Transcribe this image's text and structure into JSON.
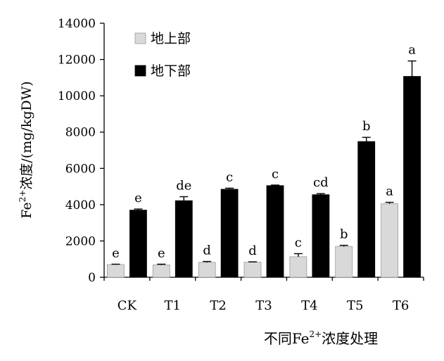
{
  "chart_data": {
    "type": "bar",
    "categories": [
      "CK",
      "T1",
      "T2",
      "T3",
      "T4",
      "T5",
      "T6"
    ],
    "series": [
      {
        "name": "地上部",
        "color": "#d9d9d9",
        "values": [
          700,
          680,
          820,
          830,
          1130,
          1700,
          4050
        ],
        "errors": [
          20,
          40,
          50,
          20,
          170,
          60,
          80
        ],
        "letters": [
          "e",
          "e",
          "d",
          "d",
          "c",
          "b",
          "a"
        ]
      },
      {
        "name": "地下部",
        "color": "#000000",
        "values": [
          3700,
          4220,
          4850,
          5050,
          4550,
          7480,
          11070
        ],
        "errors": [
          60,
          220,
          60,
          30,
          60,
          230,
          850
        ],
        "letters": [
          "e",
          "de",
          "c",
          "c",
          "cd",
          "b",
          "a"
        ]
      }
    ],
    "ylim": [
      0,
      14000
    ],
    "yticks": [
      0,
      2000,
      4000,
      6000,
      8000,
      10000,
      12000,
      14000
    ],
    "ylabel": {
      "prefix": "Fe",
      "sup": "2+",
      "suffix": "浓度/(mg/kgDW)"
    },
    "xlabel": {
      "prefix": "不同Fe",
      "sup": "2+",
      "suffix": "浓度处理"
    },
    "legend_position": "top-left",
    "grid": false
  }
}
